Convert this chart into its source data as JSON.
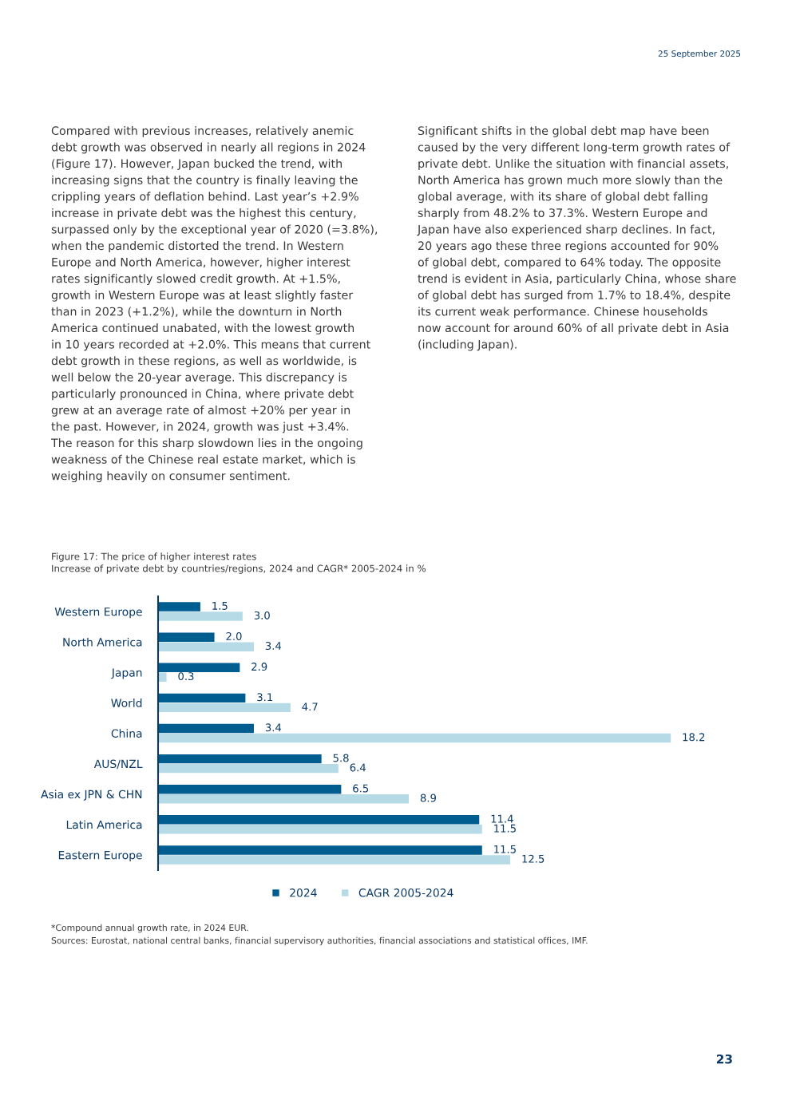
{
  "chart_data": {
    "type": "bar",
    "orientation": "horizontal",
    "title": "Figure 17: The price of higher interest rates",
    "subtitle": "Increase of private debt by countries/regions, 2024 and CAGR* 2005-2024 in %",
    "categories": [
      "Western Europe",
      "North America",
      "Japan",
      "World",
      "China",
      "AUS/NZL",
      "Asia ex JPN & CHN",
      "Latin America",
      "Eastern Europe"
    ],
    "series": [
      {
        "name": "2024",
        "color": "#005d8f",
        "values": [
          1.5,
          2.0,
          2.9,
          3.1,
          3.4,
          5.8,
          6.5,
          11.4,
          11.5
        ],
        "value_labels": [
          "1.5",
          "2.0",
          "2.9",
          "3.1",
          "3.4",
          "5.8",
          "6.5",
          "11.4",
          "11.5"
        ]
      },
      {
        "name": "CAGR 2005-2024",
        "color": "#b6dbe6",
        "values": [
          3.0,
          3.4,
          0.3,
          4.7,
          18.2,
          6.4,
          8.9,
          11.5,
          12.5
        ],
        "value_labels": [
          "3.0",
          "3.4",
          "0.3",
          "4.7",
          "18.2",
          "6.4",
          "8.9",
          "11.5",
          "12.5"
        ]
      }
    ],
    "legend": "bottom",
    "grid": false,
    "annotations": [
      "25 September 2025",
      "Compared with previous increases, relatively anemic\ndebt growth was observed in nearly all regions in 2024\n(Figure 17). However, Japan bucked the trend, with\nincreasing signs that the country is finally leaving the\ncrippling years of deflation behind. Last year’s +2.9%\nincrease in private debt was the highest this century,\nsurpassed only by the exceptional year of 2020 (=3.8%),\nwhen the pandemic distorted the trend. In Western\nEurope and North America, however, higher interest\nrates significantly slowed credit growth. At +1.5%,\ngrowth in Western Europe was at least slightly faster\nthan in 2023 (+1.2%), while the downturn in North\nAmerica continued unabated, with the lowest growth\nin 10 years recorded at +2.0%. This means that current\ndebt growth in these regions, as well as worldwide, is\nwell below the 20-year average. This discrepancy is\nparticularly pronounced in China, where private debt\ngrew at an average rate of almost +20% per year in\nthe past. However, in 2024, growth was just +3.4%.\nThe reason for this sharp slowdown lies in the ongoing\nweakness of the Chinese real estate market, which is\nweighing heavily on consumer sentiment.",
      "Significant shifts in the global debt map have been\ncaused by the very different long-term growth rates of\nprivate debt. Unlike the situation with financial assets,\nNorth America has grown much more slowly than the\nglobal average, with its share of global debt falling\nsharply from 48.2% to 37.3%. Western Europe and\nJapan have also experienced sharp declines. In fact,\n20 years ago these three regions accounted for 90%\nof global debt, compared to 64% today. The opposite\ntrend is evident in Asia, particularly China, whose share\nof global debt has surged from 1.7% to 18.4%, despite\nits current weak performance. Chinese households\nnow account for around 60% of all private debt in Asia\n(including Japan).",
      "*Compound annual growth rate, in 2024 EUR.",
      "Sources: Eurostat, national central banks, financial supervisory authorities, financial associations and statistical offices, IMF.",
      "23"
    ]
  }
}
